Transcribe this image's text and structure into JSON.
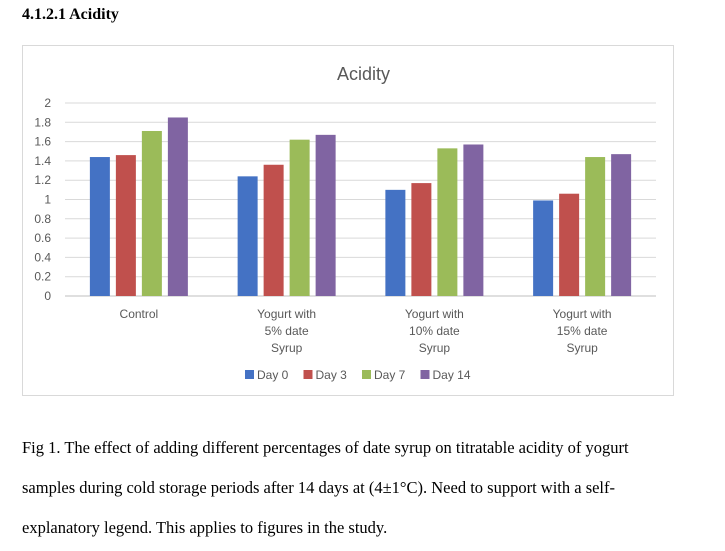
{
  "heading": "4.1.2.1 Acidity",
  "chart_data": {
    "type": "bar",
    "title": "Acidity",
    "categories": [
      [
        "Control"
      ],
      [
        "Yogurt with",
        "5% date",
        "Syrup"
      ],
      [
        "Yogurt with",
        "10% date",
        "Syrup"
      ],
      [
        "Yogurt with",
        "15% date",
        "Syrup"
      ]
    ],
    "series": [
      {
        "name": "Day 0",
        "color": "#4472c4",
        "values": [
          1.44,
          1.24,
          1.1,
          0.99
        ]
      },
      {
        "name": "Day 3",
        "color": "#c0504d",
        "values": [
          1.46,
          1.36,
          1.17,
          1.06
        ]
      },
      {
        "name": "Day 7",
        "color": "#9bbb59",
        "values": [
          1.71,
          1.62,
          1.53,
          1.44
        ]
      },
      {
        "name": "Day 14",
        "color": "#8064a2",
        "values": [
          1.85,
          1.67,
          1.57,
          1.47
        ]
      }
    ],
    "yticks": [
      "0",
      "0.2",
      "0.4",
      "0.6",
      "0.8",
      "1",
      "1.2",
      "1.4",
      "1.6",
      "1.8",
      "2"
    ],
    "ylim": [
      0,
      2
    ],
    "xlabel": "",
    "ylabel": "",
    "grid": true,
    "legend": "bottom"
  },
  "caption": {
    "line1": "Fig 1. The effect of adding different percentages of date syrup on titratable acidity of yogurt",
    "line2": "samples during cold storage periods after 14 days at (4±1°C). Need to support with a self-",
    "line3": "explanatory legend. This applies to figures in the study."
  }
}
